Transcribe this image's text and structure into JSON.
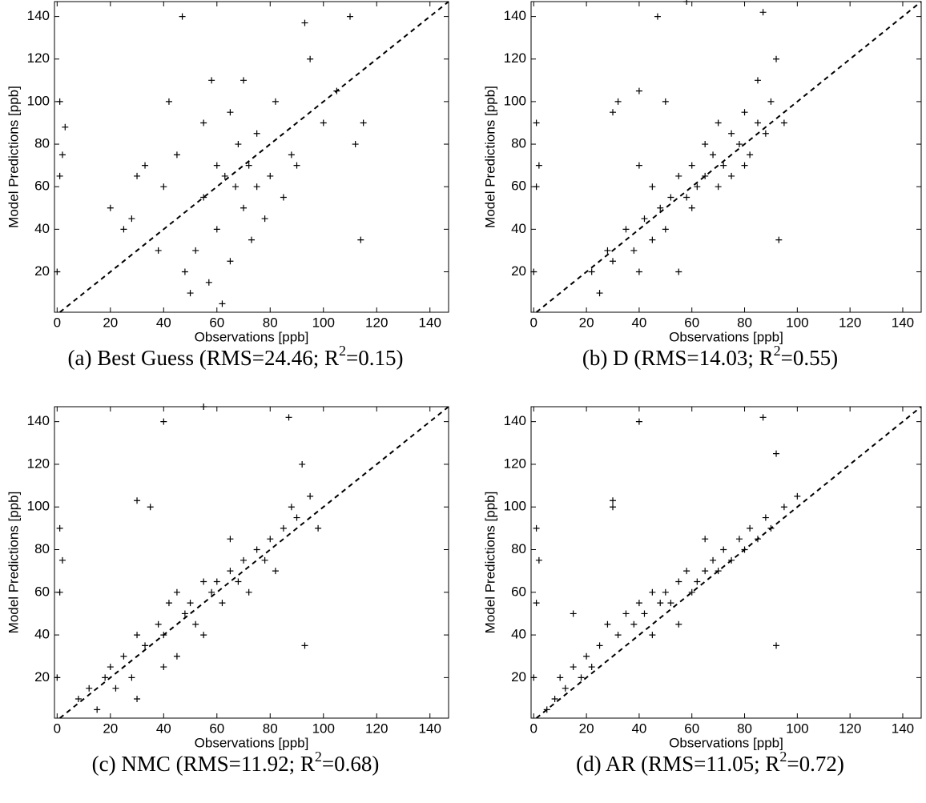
{
  "chart_data": [
    {
      "type": "scatter",
      "caption": {
        "text": "(a) Best Guess (RMS=24.46; R",
        "sup": "2",
        "tail": "=0.15)"
      },
      "xlabel": "Observations [ppb]",
      "ylabel": "Model Predictions [ppb]",
      "xlim": [
        -1,
        147
      ],
      "ylim": [
        1,
        147
      ],
      "xticks": [
        0,
        20,
        40,
        60,
        80,
        100,
        120,
        140
      ],
      "yticks": [
        20,
        40,
        60,
        80,
        100,
        120,
        140
      ],
      "series": [
        {
          "color": "#000000",
          "marker": "+",
          "x": [
            1,
            2,
            1,
            3,
            0,
            20,
            25,
            30,
            33,
            38,
            40,
            42,
            45,
            48,
            50,
            52,
            55,
            55,
            57,
            58,
            60,
            60,
            62,
            63,
            65,
            65,
            67,
            68,
            70,
            70,
            72,
            73,
            75,
            75,
            78,
            80,
            82,
            85,
            88,
            90,
            95,
            100,
            105,
            110,
            112,
            115,
            114,
            93,
            47,
            28
          ],
          "values": [
            100,
            75,
            65,
            88,
            20,
            50,
            40,
            65,
            70,
            30,
            60,
            100,
            75,
            20,
            10,
            30,
            55,
            90,
            15,
            110,
            40,
            70,
            5,
            65,
            25,
            95,
            60,
            80,
            50,
            110,
            70,
            35,
            60,
            85,
            45,
            65,
            100,
            55,
            75,
            70,
            120,
            90,
            105,
            140,
            80,
            90,
            35,
            137,
            140,
            45
          ]
        }
      ]
    },
    {
      "type": "scatter",
      "caption": {
        "text": "(b) D (RMS=14.03; R",
        "sup": "2",
        "tail": "=0.55)"
      },
      "xlabel": "Observations [ppb]",
      "ylabel": "Model Predictions [ppb]",
      "xlim": [
        -1,
        147
      ],
      "ylim": [
        1,
        147
      ],
      "xticks": [
        0,
        20,
        40,
        60,
        80,
        100,
        120,
        140
      ],
      "yticks": [
        20,
        40,
        60,
        80,
        100,
        120,
        140
      ],
      "series": [
        {
          "color": "#000000",
          "marker": "+",
          "x": [
            1,
            2,
            1,
            0,
            22,
            25,
            28,
            30,
            32,
            35,
            38,
            40,
            40,
            42,
            45,
            45,
            48,
            50,
            50,
            52,
            55,
            55,
            58,
            60,
            60,
            62,
            65,
            65,
            68,
            70,
            70,
            72,
            75,
            75,
            78,
            80,
            80,
            82,
            85,
            85,
            88,
            90,
            92,
            95,
            93,
            87,
            47,
            30,
            58,
            40
          ],
          "values": [
            90,
            70,
            60,
            20,
            20,
            10,
            30,
            25,
            100,
            40,
            30,
            20,
            70,
            45,
            35,
            60,
            50,
            100,
            40,
            55,
            20,
            65,
            55,
            50,
            70,
            60,
            65,
            80,
            75,
            60,
            90,
            70,
            85,
            65,
            80,
            70,
            95,
            75,
            90,
            110,
            85,
            100,
            120,
            90,
            35,
            142,
            140,
            95,
            147,
            105
          ]
        }
      ]
    },
    {
      "type": "scatter",
      "caption": {
        "text": "(c) NMC (RMS=11.92; R",
        "sup": "2",
        "tail": "=0.68)"
      },
      "xlabel": "Observations [ppb]",
      "ylabel": "Model Predictions [ppb]",
      "xlim": [
        -1,
        147
      ],
      "ylim": [
        1,
        147
      ],
      "xticks": [
        0,
        20,
        40,
        60,
        80,
        100,
        120,
        140
      ],
      "yticks": [
        20,
        40,
        60,
        80,
        100,
        120,
        140
      ],
      "series": [
        {
          "color": "#000000",
          "marker": "+",
          "x": [
            1,
            2,
            0,
            1,
            8,
            12,
            15,
            18,
            20,
            22,
            25,
            28,
            30,
            30,
            33,
            35,
            38,
            40,
            40,
            42,
            45,
            45,
            48,
            50,
            52,
            55,
            55,
            58,
            60,
            62,
            65,
            65,
            68,
            70,
            72,
            75,
            78,
            80,
            82,
            85,
            88,
            90,
            92,
            95,
            98,
            93,
            87,
            40,
            30,
            55
          ],
          "values": [
            90,
            75,
            20,
            60,
            10,
            15,
            5,
            20,
            25,
            15,
            30,
            20,
            40,
            10,
            35,
            100,
            45,
            40,
            25,
            55,
            60,
            30,
            50,
            55,
            45,
            65,
            40,
            60,
            65,
            55,
            70,
            85,
            65,
            75,
            60,
            80,
            75,
            85,
            70,
            90,
            100,
            95,
            120,
            105,
            90,
            35,
            142,
            140,
            103,
            147
          ]
        }
      ]
    },
    {
      "type": "scatter",
      "caption": {
        "text": "(d) AR (RMS=11.05; R",
        "sup": "2",
        "tail": "=0.72)"
      },
      "xlabel": "Observations [ppb]",
      "ylabel": "Model Predictions [ppb]",
      "xlim": [
        -1,
        147
      ],
      "ylim": [
        1,
        147
      ],
      "xticks": [
        0,
        20,
        40,
        60,
        80,
        100,
        120,
        140
      ],
      "yticks": [
        20,
        40,
        60,
        80,
        100,
        120,
        140
      ],
      "series": [
        {
          "color": "#000000",
          "marker": "+",
          "x": [
            1,
            2,
            0,
            1,
            5,
            8,
            10,
            12,
            15,
            18,
            20,
            22,
            25,
            28,
            30,
            32,
            35,
            38,
            40,
            42,
            45,
            45,
            48,
            50,
            52,
            55,
            55,
            58,
            60,
            62,
            65,
            65,
            68,
            70,
            72,
            75,
            78,
            80,
            82,
            85,
            88,
            90,
            92,
            95,
            100,
            92,
            87,
            40,
            30,
            15
          ],
          "values": [
            90,
            75,
            20,
            55,
            5,
            10,
            20,
            15,
            25,
            20,
            30,
            25,
            35,
            45,
            100,
            40,
            50,
            45,
            55,
            50,
            60,
            40,
            55,
            60,
            55,
            65,
            45,
            70,
            60,
            65,
            70,
            85,
            75,
            70,
            80,
            75,
            85,
            80,
            90,
            85,
            95,
            90,
            125,
            100,
            105,
            35,
            142,
            140,
            103,
            50
          ]
        }
      ]
    }
  ]
}
